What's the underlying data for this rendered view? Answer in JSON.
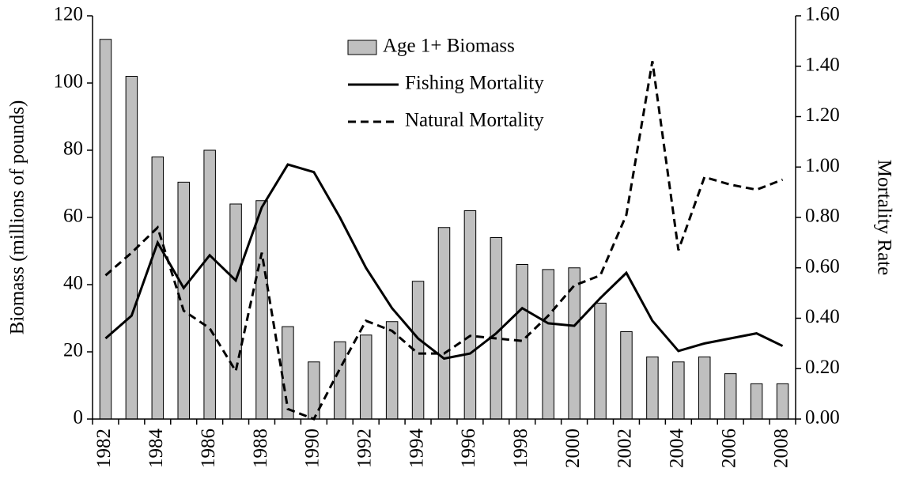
{
  "chart_data": {
    "type": "combo",
    "categories": [
      "1982",
      null,
      "1984",
      null,
      "1986",
      null,
      "1988",
      null,
      "1990",
      null,
      "1992",
      null,
      "1994",
      null,
      "1996",
      null,
      "1998",
      null,
      "2000",
      null,
      "2002",
      null,
      "2004",
      null,
      "2006",
      null,
      "2008"
    ],
    "y_label": "Biomass (millions of pounds)",
    "y2_label": "Mortality Rate",
    "ylim": [
      0,
      120
    ],
    "yticks": [
      0,
      20,
      40,
      60,
      80,
      100,
      120
    ],
    "y2lim": [
      0,
      1.6
    ],
    "y2ticks": [
      {
        "value": 0,
        "label": "0.00"
      },
      {
        "value": 0.2,
        "label": "0.20"
      },
      {
        "value": 0.4,
        "label": "0.40"
      },
      {
        "value": 0.6,
        "label": "0.60"
      },
      {
        "value": 0.8,
        "label": "0.80"
      },
      {
        "value": 1.0,
        "label": "1.00"
      },
      {
        "value": 1.2,
        "label": "1.20"
      },
      {
        "value": 1.4,
        "label": "1.40"
      },
      {
        "value": 1.6,
        "label": "1.60"
      }
    ],
    "grid": false,
    "series": [
      {
        "name": "Age 1+ Biomass",
        "type": "bar",
        "color": "#bfbfbf",
        "values": [
          113,
          102,
          78,
          70.5,
          80,
          64,
          65,
          27.5,
          17,
          23,
          25,
          29,
          41,
          57,
          62,
          54,
          46,
          44.5,
          45,
          34.5,
          26,
          18.5,
          17,
          18.5,
          13.5,
          10.5,
          10.5
        ]
      },
      {
        "name": "Fishing Mortality",
        "type": "line",
        "axis": "y2",
        "color": "#000000",
        "linestyle": "solid",
        "values": [
          0.32,
          0.41,
          0.7,
          0.52,
          0.65,
          0.55,
          0.84,
          1.01,
          0.98,
          0.8,
          0.6,
          0.44,
          0.32,
          0.24,
          0.26,
          0.34,
          0.44,
          0.38,
          0.37,
          0.48,
          0.58,
          0.39,
          0.27,
          0.3,
          0.32,
          0.34,
          0.29
        ]
      },
      {
        "name": "Natural Mortality",
        "type": "line",
        "axis": "y2",
        "color": "#000000",
        "linestyle": "dashed",
        "values": [
          0.57,
          0.66,
          0.76,
          0.43,
          0.36,
          0.19,
          0.66,
          0.04,
          0.0,
          0.2,
          0.39,
          0.35,
          0.26,
          0.26,
          0.33,
          0.32,
          0.31,
          0.41,
          0.53,
          0.57,
          0.81,
          1.42,
          0.67,
          0.96,
          0.93,
          0.91,
          0.95
        ]
      }
    ]
  }
}
